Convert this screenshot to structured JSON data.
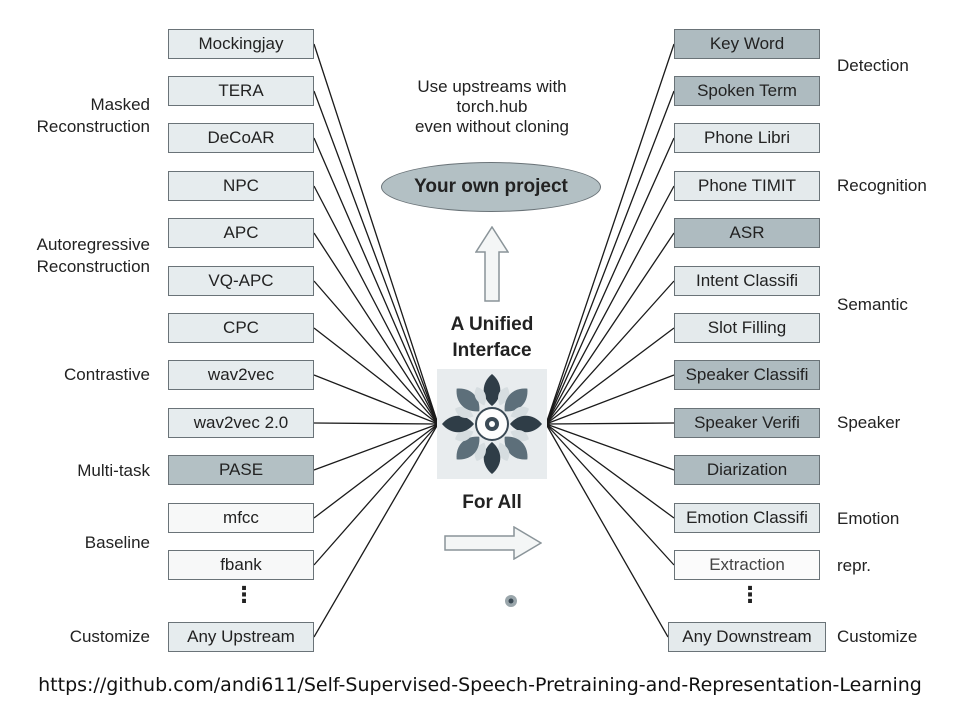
{
  "upstreams": [
    {
      "label": "Mockingjay",
      "style": "light"
    },
    {
      "label": "TERA",
      "style": "light"
    },
    {
      "label": "DeCoAR",
      "style": "light"
    },
    {
      "label": "NPC",
      "style": "light"
    },
    {
      "label": "APC",
      "style": "light"
    },
    {
      "label": "VQ-APC",
      "style": "light"
    },
    {
      "label": "CPC",
      "style": "light"
    },
    {
      "label": "wav2vec",
      "style": "light"
    },
    {
      "label": "wav2vec 2.0",
      "style": "light"
    },
    {
      "label": "PASE",
      "style": "dark"
    },
    {
      "label": "mfcc",
      "style": "plain"
    },
    {
      "label": "fbank",
      "style": "plain"
    },
    {
      "label": "Any Upstream",
      "style": "light"
    }
  ],
  "upstream_categories": [
    {
      "line1": "Masked",
      "line2": "Reconstruction"
    },
    {
      "line1": "Autoregressive",
      "line2": "Reconstruction"
    },
    {
      "line1": "Contrastive",
      "line2": ""
    },
    {
      "line1": "Multi-task",
      "line2": ""
    },
    {
      "line1": "Baseline",
      "line2": ""
    },
    {
      "line1": "Customize",
      "line2": ""
    }
  ],
  "downstreams": [
    {
      "label": "Key Word",
      "style": "dark"
    },
    {
      "label": "Spoken Term",
      "style": "dark"
    },
    {
      "label": "Phone Libri",
      "style": "light"
    },
    {
      "label": "Phone TIMIT",
      "style": "light"
    },
    {
      "label": "ASR",
      "style": "dark"
    },
    {
      "label": "Intent Classifi",
      "style": "light"
    },
    {
      "label": "Slot Filling",
      "style": "light"
    },
    {
      "label": "Speaker Classifi",
      "style": "dark"
    },
    {
      "label": "Speaker Verifi",
      "style": "dark"
    },
    {
      "label": "Diarization",
      "style": "dark"
    },
    {
      "label": "Emotion Classifi",
      "style": "light"
    },
    {
      "label": "Extraction",
      "style": "plain"
    },
    {
      "label": "Any Downstream",
      "style": "light"
    }
  ],
  "downstream_categories": [
    "Detection",
    "Recognition",
    "Semantic",
    "Speaker",
    "Emotion",
    "repr.",
    "Customize"
  ],
  "ellipsis": "⋮",
  "center": {
    "note_line1": "Use upstreams with",
    "note_line2": "torch.hub",
    "note_line3": "even without cloning",
    "project_label": "Your own project",
    "title_line1": "A Unified",
    "title_line2": "Interface",
    "for_all": "For All"
  },
  "footer_url": "https://github.com/andi611/Self-Supervised-Speech-Pretraining-and-Representation-Learning",
  "colors": {
    "box_border": "#6a7378",
    "box_dark": "#b3c0c4",
    "box_light": "#e6ecee",
    "wire": "#1a1a1a"
  }
}
